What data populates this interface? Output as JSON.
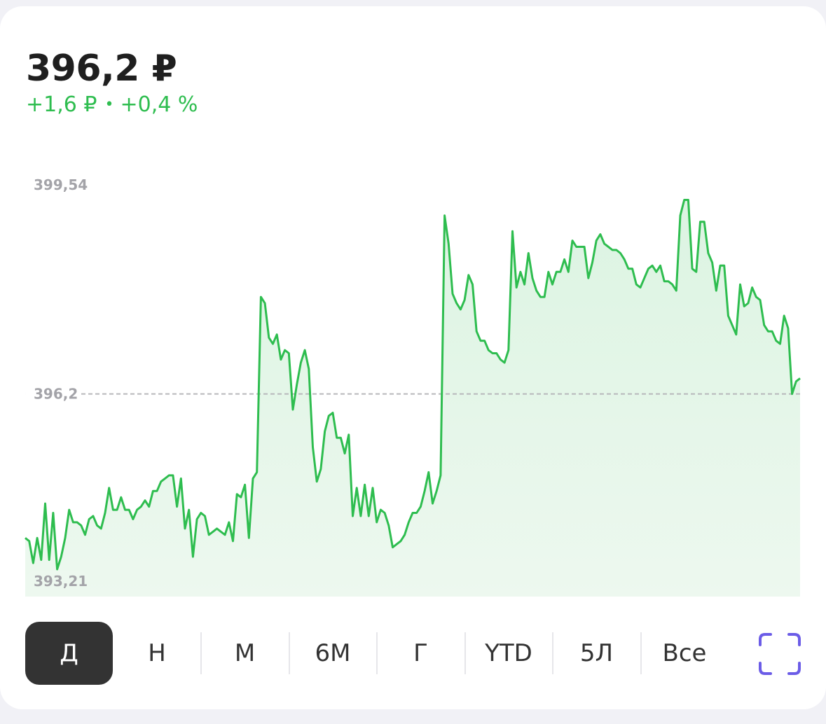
{
  "header": {
    "price": "396,2 ₽",
    "change_abs": "+1,6 ₽",
    "separator": "•",
    "change_pct": "+0,4 %"
  },
  "colors": {
    "line": "#2ebd4f",
    "fill": "#e2f5e6",
    "text": "#1f1f1f",
    "axis_label": "#a3a3a8",
    "accent": "#6b5ce7"
  },
  "periods": [
    {
      "label": "Д",
      "active": true
    },
    {
      "label": "Н",
      "active": false
    },
    {
      "label": "М",
      "active": false
    },
    {
      "label": "6М",
      "active": false
    },
    {
      "label": "Г",
      "active": false
    },
    {
      "label": "YTD",
      "active": false
    },
    {
      "label": "5Л",
      "active": false
    },
    {
      "label": "Все",
      "active": false
    }
  ],
  "expand_icon": "fullscreen-icon",
  "chart_data": {
    "type": "area",
    "y_labels": [
      "399,54",
      "396,2",
      "393,21"
    ],
    "reference_line": 396.2,
    "ylim": [
      393.21,
      399.54
    ],
    "y_max_label_value": 399.54,
    "y_min_label_value": 393.21,
    "grid": false,
    "series": [
      {
        "values": [
          393.9,
          393.85,
          393.5,
          393.9,
          393.55,
          394.45,
          393.55,
          394.3,
          393.4,
          393.6,
          393.9,
          394.35,
          394.15,
          394.15,
          394.1,
          393.95,
          394.2,
          394.25,
          394.1,
          394.05,
          394.3,
          394.7,
          394.35,
          394.35,
          394.55,
          394.35,
          394.35,
          394.2,
          394.35,
          394.4,
          394.5,
          394.4,
          394.65,
          394.65,
          394.8,
          394.85,
          394.9,
          394.9,
          394.4,
          394.85,
          394.05,
          394.35,
          393.6,
          394.2,
          394.3,
          394.25,
          393.95,
          394.0,
          394.05,
          394.0,
          393.95,
          394.15,
          393.85,
          394.6,
          394.55,
          394.75,
          393.9,
          394.85,
          394.95,
          397.75,
          397.65,
          397.1,
          397.0,
          397.15,
          396.75,
          396.9,
          396.85,
          395.95,
          396.35,
          396.7,
          396.9,
          396.6,
          395.35,
          394.8,
          395.0,
          395.6,
          395.85,
          395.9,
          395.5,
          395.5,
          395.25,
          395.55,
          394.25,
          394.7,
          394.25,
          394.75,
          394.25,
          394.7,
          394.15,
          394.35,
          394.3,
          394.1,
          393.75,
          393.8,
          393.85,
          393.95,
          394.15,
          394.3,
          394.3,
          394.4,
          394.65,
          394.95,
          394.45,
          394.65,
          394.9,
          399.05,
          398.6,
          397.8,
          397.65,
          397.55,
          397.7,
          398.1,
          397.95,
          397.2,
          397.05,
          397.05,
          396.9,
          396.85,
          396.85,
          396.75,
          396.7,
          396.9,
          398.8,
          397.9,
          398.15,
          397.95,
          398.45,
          398.05,
          397.85,
          397.75,
          397.75,
          398.15,
          397.95,
          398.15,
          398.15,
          398.35,
          398.15,
          398.65,
          398.55,
          398.55,
          398.55,
          398.05,
          398.3,
          398.65,
          398.75,
          398.6,
          398.55,
          398.5,
          398.5,
          398.45,
          398.35,
          398.2,
          398.2,
          397.95,
          397.9,
          398.05,
          398.2,
          398.25,
          398.15,
          398.25,
          398.0,
          398.0,
          397.95,
          397.85,
          399.05,
          399.3,
          399.3,
          398.2,
          398.15,
          398.95,
          398.95,
          398.45,
          398.3,
          397.85,
          398.25,
          398.25,
          397.45,
          397.3,
          397.15,
          397.95,
          397.6,
          397.65,
          397.9,
          397.75,
          397.7,
          397.3,
          397.2,
          397.2,
          397.05,
          397.0,
          397.45,
          397.25,
          396.2,
          396.4,
          396.45
        ],
        "area": true
      }
    ]
  }
}
